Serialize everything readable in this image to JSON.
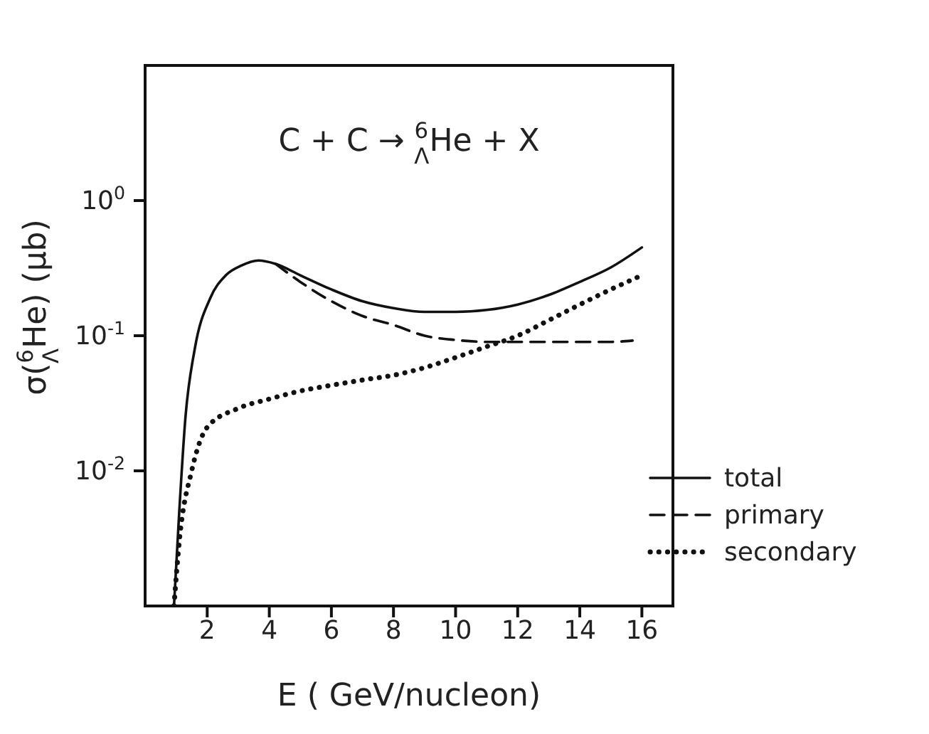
{
  "chart_data": {
    "type": "line",
    "xlabel": "E ( GeV/nucleon)",
    "ylabel": "σ($^{6}$$_{Λ}$He)  (μb)",
    "annotations": [
      "C + C → $^{6}$$_{Λ}$He + X"
    ],
    "log": "y",
    "xlim": [
      0,
      17
    ],
    "xticks": [
      2,
      4,
      6,
      8,
      10,
      12,
      14,
      16
    ],
    "ylim": [
      0.001,
      10
    ],
    "yticks": [
      {
        "value": 1,
        "label": "10$^{0}$"
      },
      {
        "value": 0.1,
        "label": "10$^{-1}$"
      },
      {
        "value": 0.01,
        "label": "10$^{-2}$"
      }
    ],
    "grid": false,
    "legend": "bottom right",
    "marker": "none",
    "series": [
      {
        "name": "total",
        "color": "#111111",
        "line_style": "solid",
        "x": [
          0.93,
          1.1,
          1.3,
          1.6,
          2.1,
          2.6,
          3.1,
          3.65,
          4.2,
          5,
          6,
          7,
          8,
          9,
          10,
          11,
          12,
          13,
          14,
          15,
          16
        ],
        "values": [
          0.001,
          0.005,
          0.025,
          0.08,
          0.19,
          0.28,
          0.33,
          0.36,
          0.34,
          0.28,
          0.22,
          0.18,
          0.16,
          0.15,
          0.15,
          0.155,
          0.17,
          0.2,
          0.25,
          0.32,
          0.45
        ]
      },
      {
        "name": "primary",
        "color": "#111111",
        "line_style": "dashed",
        "x": [
          4.2,
          5,
          6,
          7,
          8,
          9,
          10,
          11,
          12,
          13,
          14,
          15,
          15.7
        ],
        "values": [
          0.34,
          0.25,
          0.18,
          0.14,
          0.12,
          0.1,
          0.093,
          0.09,
          0.09,
          0.09,
          0.09,
          0.09,
          0.092
        ]
      },
      {
        "name": "secondary",
        "color": "#111111",
        "line_style": "dotted",
        "x": [
          0.93,
          1.1,
          1.5,
          2,
          3,
          4,
          5,
          6,
          7,
          8,
          9,
          10,
          11,
          12,
          13,
          14,
          15,
          16
        ],
        "values": [
          0.001,
          0.003,
          0.01,
          0.021,
          0.029,
          0.034,
          0.039,
          0.043,
          0.047,
          0.051,
          0.058,
          0.069,
          0.083,
          0.1,
          0.13,
          0.17,
          0.22,
          0.28
        ]
      }
    ]
  }
}
